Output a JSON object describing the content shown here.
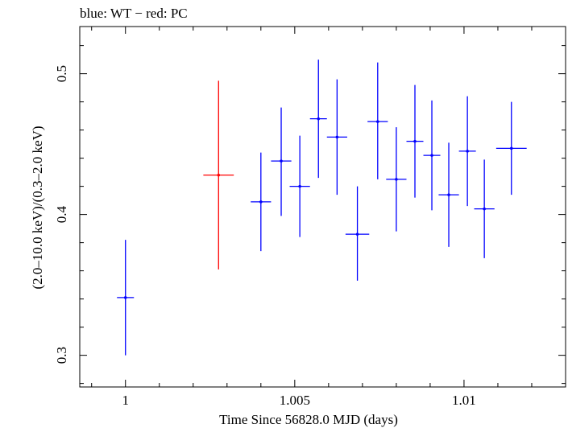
{
  "chart_data": {
    "type": "scatter",
    "title": "blue: WT − red: PC",
    "xlabel": "Time Since 56828.0 MJD (days)",
    "ylabel": "(2.0–10.0 keV)/(0.3–2.0 keV)",
    "xlim": [
      0.99865,
      1.013
    ],
    "ylim": [
      0.2775,
      0.5335
    ],
    "xticks": [
      1,
      1.005,
      1.01
    ],
    "xtick_labels": [
      "1",
      "1.005",
      "1.01"
    ],
    "yticks": [
      0.3,
      0.4,
      0.5
    ],
    "ytick_labels": [
      "0.3",
      "0.4",
      "0.5"
    ],
    "grid": false,
    "series": [
      {
        "name": "WT",
        "color": "#0000ff",
        "points": [
          {
            "x": 1.0,
            "xerr": 0.00025,
            "y": 0.341,
            "yerr_low": 0.041,
            "yerr_high": 0.041
          },
          {
            "x": 1.004,
            "xerr": 0.0003,
            "y": 0.409,
            "yerr_low": 0.035,
            "yerr_high": 0.035
          },
          {
            "x": 1.0046,
            "xerr": 0.0003,
            "y": 0.438,
            "yerr_low": 0.039,
            "yerr_high": 0.038
          },
          {
            "x": 1.00515,
            "xerr": 0.0003,
            "y": 0.42,
            "yerr_low": 0.036,
            "yerr_high": 0.036
          },
          {
            "x": 1.0057,
            "xerr": 0.00025,
            "y": 0.468,
            "yerr_low": 0.042,
            "yerr_high": 0.042
          },
          {
            "x": 1.00625,
            "xerr": 0.0003,
            "y": 0.455,
            "yerr_low": 0.041,
            "yerr_high": 0.041
          },
          {
            "x": 1.00685,
            "xerr": 0.00035,
            "y": 0.386,
            "yerr_low": 0.033,
            "yerr_high": 0.034
          },
          {
            "x": 1.00745,
            "xerr": 0.0003,
            "y": 0.466,
            "yerr_low": 0.041,
            "yerr_high": 0.042
          },
          {
            "x": 1.008,
            "xerr": 0.0003,
            "y": 0.425,
            "yerr_low": 0.037,
            "yerr_high": 0.037
          },
          {
            "x": 1.00855,
            "xerr": 0.00025,
            "y": 0.452,
            "yerr_low": 0.04,
            "yerr_high": 0.04
          },
          {
            "x": 1.00905,
            "xerr": 0.00025,
            "y": 0.442,
            "yerr_low": 0.039,
            "yerr_high": 0.039
          },
          {
            "x": 1.00955,
            "xerr": 0.0003,
            "y": 0.414,
            "yerr_low": 0.037,
            "yerr_high": 0.037
          },
          {
            "x": 1.0101,
            "xerr": 0.00025,
            "y": 0.445,
            "yerr_low": 0.039,
            "yerr_high": 0.039
          },
          {
            "x": 1.0106,
            "xerr": 0.0003,
            "y": 0.404,
            "yerr_low": 0.035,
            "yerr_high": 0.035
          },
          {
            "x": 1.0114,
            "xerr": 0.00045,
            "y": 0.447,
            "yerr_low": 0.033,
            "yerr_high": 0.033
          }
        ]
      },
      {
        "name": "PC",
        "color": "#ff0000",
        "points": [
          {
            "x": 1.00275,
            "xerr": 0.00045,
            "y": 0.428,
            "yerr_low": 0.067,
            "yerr_high": 0.067
          }
        ]
      }
    ]
  }
}
